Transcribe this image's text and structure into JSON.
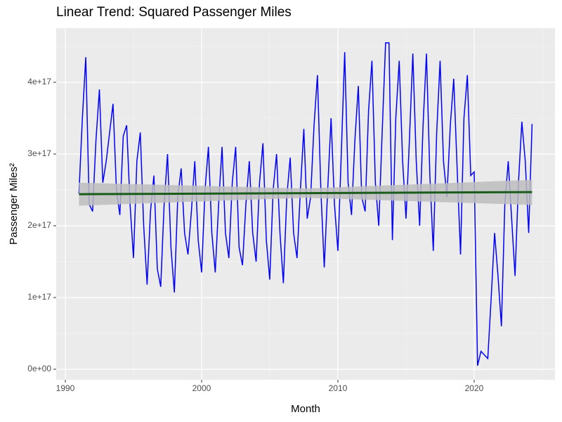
{
  "chart_data": {
    "type": "line",
    "title": "Linear Trend: Squared Passenger Miles",
    "x_label": "Month",
    "y_label": "Passenger Miles²",
    "x": [
      1991,
      1991.25,
      1991.5,
      1991.75,
      1992,
      1992.25,
      1992.5,
      1992.75,
      1993,
      1993.25,
      1993.5,
      1993.75,
      1994,
      1994.25,
      1994.5,
      1994.75,
      1995,
      1995.25,
      1995.5,
      1995.75,
      1996,
      1996.25,
      1996.5,
      1996.75,
      1997,
      1997.25,
      1997.5,
      1997.75,
      1998,
      1998.25,
      1998.5,
      1998.75,
      1999,
      1999.25,
      1999.5,
      1999.75,
      2000,
      2000.25,
      2000.5,
      2000.75,
      2001,
      2001.25,
      2001.5,
      2001.75,
      2002,
      2002.25,
      2002.5,
      2002.75,
      2003,
      2003.25,
      2003.5,
      2003.75,
      2004,
      2004.25,
      2004.5,
      2004.75,
      2005,
      2005.25,
      2005.5,
      2005.75,
      2006,
      2006.25,
      2006.5,
      2006.75,
      2007,
      2007.25,
      2007.5,
      2007.75,
      2008,
      2008.25,
      2008.5,
      2008.75,
      2009,
      2009.25,
      2009.5,
      2009.75,
      2010,
      2010.25,
      2010.5,
      2010.75,
      2011,
      2011.25,
      2011.5,
      2011.75,
      2012,
      2012.25,
      2012.5,
      2012.75,
      2013,
      2013.25,
      2013.5,
      2013.75,
      2014,
      2014.25,
      2014.5,
      2014.75,
      2015,
      2015.25,
      2015.5,
      2015.75,
      2016,
      2016.25,
      2016.5,
      2016.75,
      2017,
      2017.25,
      2017.5,
      2017.75,
      2018,
      2018.25,
      2018.5,
      2018.75,
      2019,
      2019.25,
      2019.5,
      2019.75,
      2020,
      2020.25,
      2020.5,
      2020.75,
      2021,
      2021.25,
      2021.5,
      2021.75,
      2022,
      2022.25,
      2022.5,
      2022.75,
      2023,
      2023.25,
      2023.5,
      2023.75,
      2024,
      2024.25
    ],
    "series": [
      {
        "color": "#0000ff",
        "values": [
          2.45e+17,
          3.5e+17,
          4.35e+17,
          2.3e+17,
          2.2e+17,
          3.2e+17,
          3.9e+17,
          2.6e+17,
          2.9e+17,
          3.3e+17,
          3.7e+17,
          2.5e+17,
          2.15e+17,
          3.25e+17,
          3.4e+17,
          2.3e+17,
          1.55e+17,
          2.9e+17,
          3.3e+17,
          2e+17,
          1.18e+17,
          2.2e+17,
          2.7e+17,
          1.4e+17,
          1.15e+17,
          2.3e+17,
          3e+17,
          1.7e+17,
          1.07e+17,
          2.4e+17,
          2.8e+17,
          1.9e+17,
          1.6e+17,
          2.2e+17,
          2.9e+17,
          1.8e+17,
          1.35e+17,
          2.5e+17,
          3.1e+17,
          1.9e+17,
          1.35e+17,
          2.3e+17,
          3.1e+17,
          1.9e+17,
          1.55e+17,
          2.6e+17,
          3.1e+17,
          1.7e+17,
          1.45e+17,
          2.3e+17,
          2.9e+17,
          1.9e+17,
          1.5e+17,
          2.6e+17,
          3.15e+17,
          1.8e+17,
          1.25e+17,
          2.5e+17,
          3e+17,
          1.9e+17,
          1.2e+17,
          2.4e+17,
          2.95e+17,
          1.9e+17,
          1.55e+17,
          2.5e+17,
          3.35e+17,
          2.1e+17,
          2.4e+17,
          3.4e+17,
          4.1e+17,
          2.5e+17,
          1.42e+17,
          2.5e+17,
          3.5e+17,
          2.3e+17,
          1.65e+17,
          3e+17,
          4.42e+17,
          2.6e+17,
          2.15e+17,
          3.2e+17,
          3.95e+17,
          2.4e+17,
          2.2e+17,
          3.6e+17,
          4.3e+17,
          2.6e+17,
          2e+17,
          3.3e+17,
          4.55e+17,
          4.55e+17,
          1.8e+17,
          3.5e+17,
          4.3e+17,
          2.9e+17,
          2.1e+17,
          3.2e+17,
          4.4e+17,
          2.9e+17,
          2e+17,
          3.4e+17,
          4.4e+17,
          2.7e+17,
          1.65e+17,
          3.3e+17,
          4.3e+17,
          2.9e+17,
          2.4e+17,
          3.4e+17,
          4.05e+17,
          2.8e+17,
          1.6e+17,
          3.5e+17,
          4.1e+17,
          2.7e+17,
          2.75e+17,
          5000000000000000.0,
          2.5e+16,
          2e+16,
          1.5e+16,
          1e+17,
          1.9e+17,
          1.3e+17,
          6e+16,
          2.3e+17,
          2.9e+17,
          2.1e+17,
          1.3e+17,
          2.6e+17,
          3.45e+17,
          2.9e+17,
          1.9e+17,
          3.42e+17
        ]
      }
    ],
    "trend": {
      "color": "#1a5c1a",
      "band_color": "#bdbdbd",
      "x": [
        1991,
        2007.6,
        2024.25
      ],
      "values": [
        2.44e+17,
        2.455e+17,
        2.47e+17
      ],
      "lower": [
        2.28e+17,
        2.39e+17,
        2.29e+17
      ],
      "upper": [
        2.6e+17,
        2.52e+17,
        2.64e+17
      ]
    },
    "xlim": [
      1989.33,
      2025.93
    ],
    "xticks": [
      1990,
      2000,
      2010,
      2020
    ],
    "ylim": [
      -1.47e+16,
      4.755e+17
    ],
    "yticks": [
      {
        "value": 0,
        "label": "0e+00"
      },
      {
        "value": 1e+17,
        "label": "1e+17"
      },
      {
        "value": 2e+17,
        "label": "2e+17"
      },
      {
        "value": 3e+17,
        "label": "3e+17"
      },
      {
        "value": 4e+17,
        "label": "4e+17"
      }
    ],
    "grid": true
  }
}
